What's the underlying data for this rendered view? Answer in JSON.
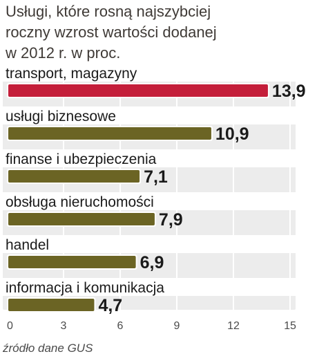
{
  "chart_data": {
    "type": "bar",
    "orientation": "horizontal",
    "title_lines": [
      "Usługi, które rosną najszybciej",
      "roczny wzrost wartości dodanej",
      "w 2012 r. w proc."
    ],
    "categories": [
      "transport, magazyny",
      "usługi biznesowe",
      "finanse i ubezpieczenia",
      "obsługa nieruchomości",
      "handel",
      "informacja i komunikacja"
    ],
    "values": [
      13.9,
      10.9,
      7.1,
      7.9,
      6.9,
      4.7
    ],
    "value_labels": [
      "13,9",
      "10,9",
      "7,1",
      "7,9",
      "6,9",
      "4,7"
    ],
    "bar_colors": [
      "#c41e3a",
      "#6b6424",
      "#6b6424",
      "#6b6424",
      "#6b6424",
      "#6b6424"
    ],
    "xticks": [
      0,
      3,
      6,
      9,
      12,
      15
    ],
    "xlim": [
      0,
      15
    ],
    "grid": "vertical",
    "source": "źródło dane GUS"
  },
  "colors": {
    "highlight": "#c41e3a",
    "bar": "#6b6424",
    "panel": "#ececec",
    "text": "#1a1a1a",
    "title": "#3f3a36"
  }
}
